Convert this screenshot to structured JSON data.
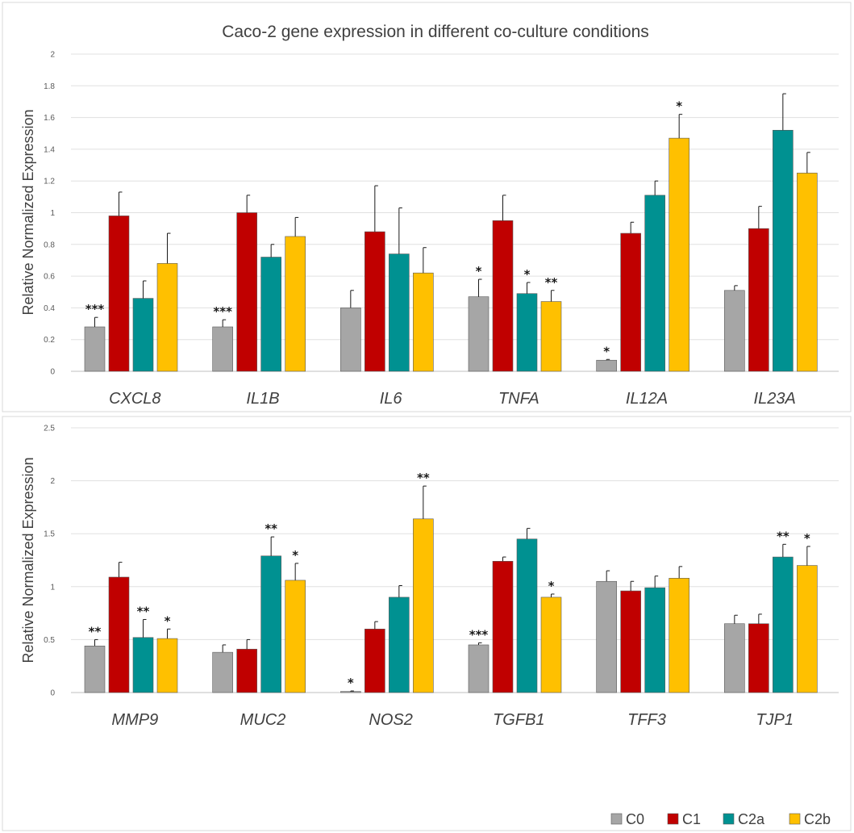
{
  "colors": {
    "C0": "#a6a6a6",
    "C1": "#c00000",
    "C2a": "#009191",
    "C2b": "#ffc000"
  },
  "legend": [
    "C0",
    "C1",
    "C2a",
    "C2b"
  ],
  "chart_data": [
    {
      "type": "bar",
      "title": "Caco-2 gene expression in different co-culture conditions",
      "ylabel": "Relative Normalized Expression",
      "ylim": [
        0,
        2
      ],
      "yticks": [
        "0",
        "0.2",
        "0.4",
        "0.6",
        "0.8",
        "1",
        "1.2",
        "1.4",
        "1.6",
        "1.8",
        "2"
      ],
      "categories": [
        "CXCL8",
        "IL1B",
        "IL6",
        "TNFA",
        "IL12A",
        "IL23A"
      ],
      "series": [
        {
          "name": "C0",
          "values": [
            0.28,
            0.28,
            0.4,
            0.47,
            0.07,
            0.51
          ],
          "errors": [
            0.06,
            0.045,
            0.11,
            0.11,
            0.005,
            0.03
          ],
          "sig": [
            "***",
            "***",
            "",
            "*",
            "*",
            ""
          ]
        },
        {
          "name": "C1",
          "values": [
            0.98,
            1.0,
            0.88,
            0.95,
            0.87,
            0.9
          ],
          "errors": [
            0.15,
            0.11,
            0.29,
            0.16,
            0.07,
            0.14
          ],
          "sig": [
            "",
            "",
            "",
            "",
            "",
            ""
          ]
        },
        {
          "name": "C2a",
          "values": [
            0.46,
            0.72,
            0.74,
            0.49,
            1.11,
            1.52
          ],
          "errors": [
            0.11,
            0.08,
            0.29,
            0.07,
            0.09,
            0.23
          ],
          "sig": [
            "",
            "",
            "",
            "*",
            "",
            ""
          ]
        },
        {
          "name": "C2b",
          "values": [
            0.68,
            0.85,
            0.62,
            0.44,
            1.47,
            1.25
          ],
          "errors": [
            0.19,
            0.12,
            0.16,
            0.07,
            0.15,
            0.13
          ],
          "sig": [
            "",
            "",
            "",
            "**",
            "*",
            ""
          ]
        }
      ],
      "grid": true
    },
    {
      "type": "bar",
      "title": "",
      "ylabel": "Relative Normalized Expression",
      "ylim": [
        0,
        2.5
      ],
      "yticks": [
        "0",
        "0.5",
        "1",
        "1.5",
        "2",
        "2.5"
      ],
      "categories": [
        "MMP9",
        "MUC2",
        "NOS2",
        "TGFB1",
        "TFF3",
        "TJP1"
      ],
      "series": [
        {
          "name": "C0",
          "values": [
            0.44,
            0.38,
            0.01,
            0.45,
            1.05,
            0.65
          ],
          "errors": [
            0.06,
            0.07,
            0.005,
            0.02,
            0.1,
            0.08
          ],
          "sig": [
            "**",
            "",
            "*",
            "***",
            "",
            ""
          ]
        },
        {
          "name": "C1",
          "values": [
            1.09,
            0.41,
            0.6,
            1.24,
            0.96,
            0.65
          ],
          "errors": [
            0.14,
            0.09,
            0.07,
            0.04,
            0.09,
            0.09
          ],
          "sig": [
            "",
            "",
            "",
            "",
            "",
            ""
          ]
        },
        {
          "name": "C2a",
          "values": [
            0.52,
            1.29,
            0.9,
            1.45,
            0.99,
            1.28
          ],
          "errors": [
            0.17,
            0.18,
            0.11,
            0.1,
            0.11,
            0.12
          ],
          "sig": [
            "**",
            "**",
            "",
            "",
            "",
            "**"
          ]
        },
        {
          "name": "C2b",
          "values": [
            0.51,
            1.06,
            1.64,
            0.9,
            1.08,
            1.2
          ],
          "errors": [
            0.09,
            0.16,
            0.31,
            0.03,
            0.11,
            0.18
          ],
          "sig": [
            "*",
            "*",
            "**",
            "*",
            "",
            "*"
          ]
        }
      ],
      "grid": true
    }
  ]
}
